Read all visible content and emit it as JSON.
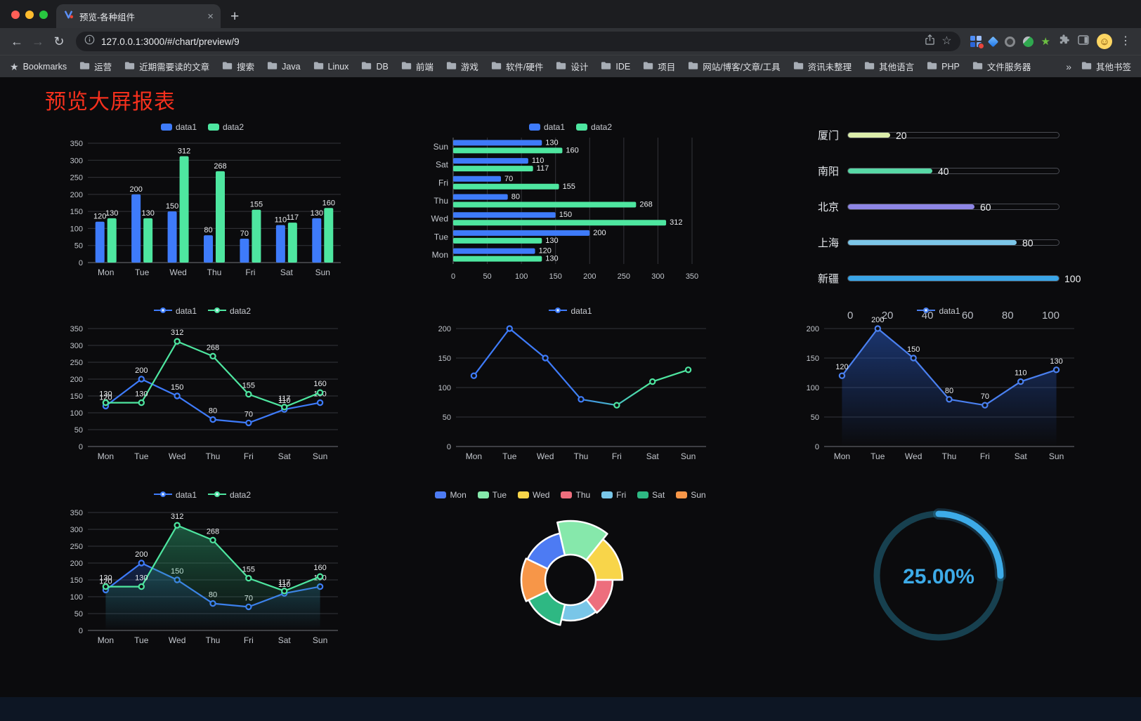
{
  "window": {
    "tab": {
      "title": "预览-各种组件"
    },
    "toolbar": {
      "url": "127.0.0.1:3000/#/chart/preview/9"
    },
    "bookmarks_bar": {
      "lead": "Bookmarks",
      "folders": [
        "运营",
        "近期需要读的文章",
        "搜索",
        "Java",
        "Linux",
        "DB",
        "前端",
        "游戏",
        "软件/硬件",
        "设计",
        "IDE",
        "项目",
        "网站/博客/文章/工具",
        "资讯未整理",
        "其他语言",
        "PHP",
        "文件服务器"
      ],
      "overflow": "»",
      "other": "其他书签"
    }
  },
  "icons": {
    "back": "←",
    "forward": "→",
    "reload": "↻",
    "tab_close": "×",
    "new_tab": "+",
    "overflow_menu": "⋮",
    "omnibox_star": "☆",
    "lead_star": "★",
    "ext_star": "★",
    "avatar_face": "☺"
  },
  "page": {
    "title": "预览大屏报表",
    "title_color": "#f5301d",
    "background": "#0b0b0d"
  },
  "palette": {
    "data1_blue": "#3e7bfa",
    "data2_green": "#4ee6a0"
  },
  "chart_data": [
    {
      "type": "bar",
      "categories": [
        "Mon",
        "Tue",
        "Wed",
        "Thu",
        "Fri",
        "Sat",
        "Sun"
      ],
      "series": [
        {
          "name": "data1",
          "color": "#3e7bfa",
          "values": [
            120,
            200,
            150,
            80,
            70,
            110,
            130
          ]
        },
        {
          "name": "data2",
          "color": "#4ee6a0",
          "values": [
            130,
            130,
            312,
            268,
            155,
            117,
            160
          ]
        }
      ],
      "ylim": [
        0,
        350
      ],
      "ytick_step": 50,
      "value_labels": true,
      "legend_position": "top",
      "grid": true
    },
    {
      "type": "hbar",
      "categories": [
        "Mon",
        "Tue",
        "Wed",
        "Thu",
        "Fri",
        "Sat",
        "Sun"
      ],
      "series": [
        {
          "name": "data1",
          "color": "#3e7bfa",
          "values": [
            120,
            200,
            150,
            80,
            70,
            110,
            130
          ]
        },
        {
          "name": "data2",
          "color": "#4ee6a0",
          "values": [
            130,
            130,
            312,
            268,
            155,
            117,
            160
          ]
        }
      ],
      "xlim": [
        0,
        350
      ],
      "xtick_step": 50,
      "value_labels": true,
      "legend_position": "top",
      "grid": true
    },
    {
      "type": "progress",
      "max": 100,
      "items": [
        {
          "label": "厦门",
          "value": 20,
          "color": "#dcedaa"
        },
        {
          "label": "南阳",
          "value": 40,
          "color": "#58d9a6"
        },
        {
          "label": "北京",
          "value": 60,
          "color": "#8e86e5"
        },
        {
          "label": "上海",
          "value": 80,
          "color": "#7cc6e8"
        },
        {
          "label": "新疆",
          "value": 100,
          "color": "#3aa5e6"
        }
      ],
      "axis_ticks": [
        0,
        20,
        40,
        60,
        80,
        100
      ]
    },
    {
      "type": "line",
      "categories": [
        "Mon",
        "Tue",
        "Wed",
        "Thu",
        "Fri",
        "Sat",
        "Sun"
      ],
      "series": [
        {
          "name": "data1",
          "color": "#3e7bfa",
          "values": [
            120,
            200,
            150,
            80,
            70,
            110,
            130
          ]
        },
        {
          "name": "data2",
          "color": "#4ee6a0",
          "values": [
            130,
            130,
            312,
            268,
            155,
            117,
            160
          ]
        }
      ],
      "ylim": [
        0,
        350
      ],
      "value_labels": true,
      "legend_position": "top",
      "grid": true
    },
    {
      "type": "line",
      "categories": [
        "Mon",
        "Tue",
        "Wed",
        "Thu",
        "Fri",
        "Sat",
        "Sun"
      ],
      "series": [
        {
          "name": "data1",
          "gradient": [
            "#3e7bfa",
            "#4ee6a0"
          ],
          "values": [
            120,
            200,
            150,
            80,
            70,
            110,
            130
          ]
        }
      ],
      "ylim": [
        0,
        200
      ],
      "value_labels": false,
      "legend_position": "top",
      "grid": true
    },
    {
      "type": "line",
      "categories": [
        "Mon",
        "Tue",
        "Wed",
        "Thu",
        "Fri",
        "Sat",
        "Sun"
      ],
      "series": [
        {
          "name": "data1",
          "color": "#4a80f0",
          "area": "#2a5fd0",
          "area_opacity": 0.5,
          "values": [
            120,
            200,
            150,
            80,
            70,
            110,
            130
          ]
        }
      ],
      "ylim": [
        0,
        200
      ],
      "value_labels": true,
      "legend_position": "top",
      "grid": true
    },
    {
      "type": "line",
      "categories": [
        "Mon",
        "Tue",
        "Wed",
        "Thu",
        "Fri",
        "Sat",
        "Sun"
      ],
      "series": [
        {
          "name": "data1",
          "color": "#3e7bfa",
          "area": "#2a5fd0",
          "area_opacity": 0.3,
          "values": [
            120,
            200,
            150,
            80,
            70,
            110,
            130
          ]
        },
        {
          "name": "data2",
          "color": "#4ee6a0",
          "area": "#2fae78",
          "area_opacity": 0.45,
          "values": [
            130,
            130,
            312,
            268,
            155,
            117,
            160
          ]
        }
      ],
      "ylim": [
        0,
        350
      ],
      "value_labels": true,
      "legend_position": "top",
      "grid": true
    },
    {
      "type": "rose",
      "legend_position": "top",
      "items": [
        {
          "name": "Mon",
          "value": 120,
          "color": "#4d7bf3"
        },
        {
          "name": "Tue",
          "value": 200,
          "color": "#86e8ab"
        },
        {
          "name": "Wed",
          "value": 150,
          "color": "#f8d54a"
        },
        {
          "name": "Thu",
          "value": 80,
          "color": "#ed6e7d"
        },
        {
          "name": "Fri",
          "value": 70,
          "color": "#79c6e8"
        },
        {
          "name": "Sat",
          "value": 110,
          "color": "#2eb883"
        },
        {
          "name": "Sun",
          "value": 130,
          "color": "#f79648"
        }
      ]
    },
    {
      "type": "gauge",
      "value": 25,
      "label": "25.00%",
      "color": "#3dabe8",
      "track_color": "#17404f"
    }
  ]
}
